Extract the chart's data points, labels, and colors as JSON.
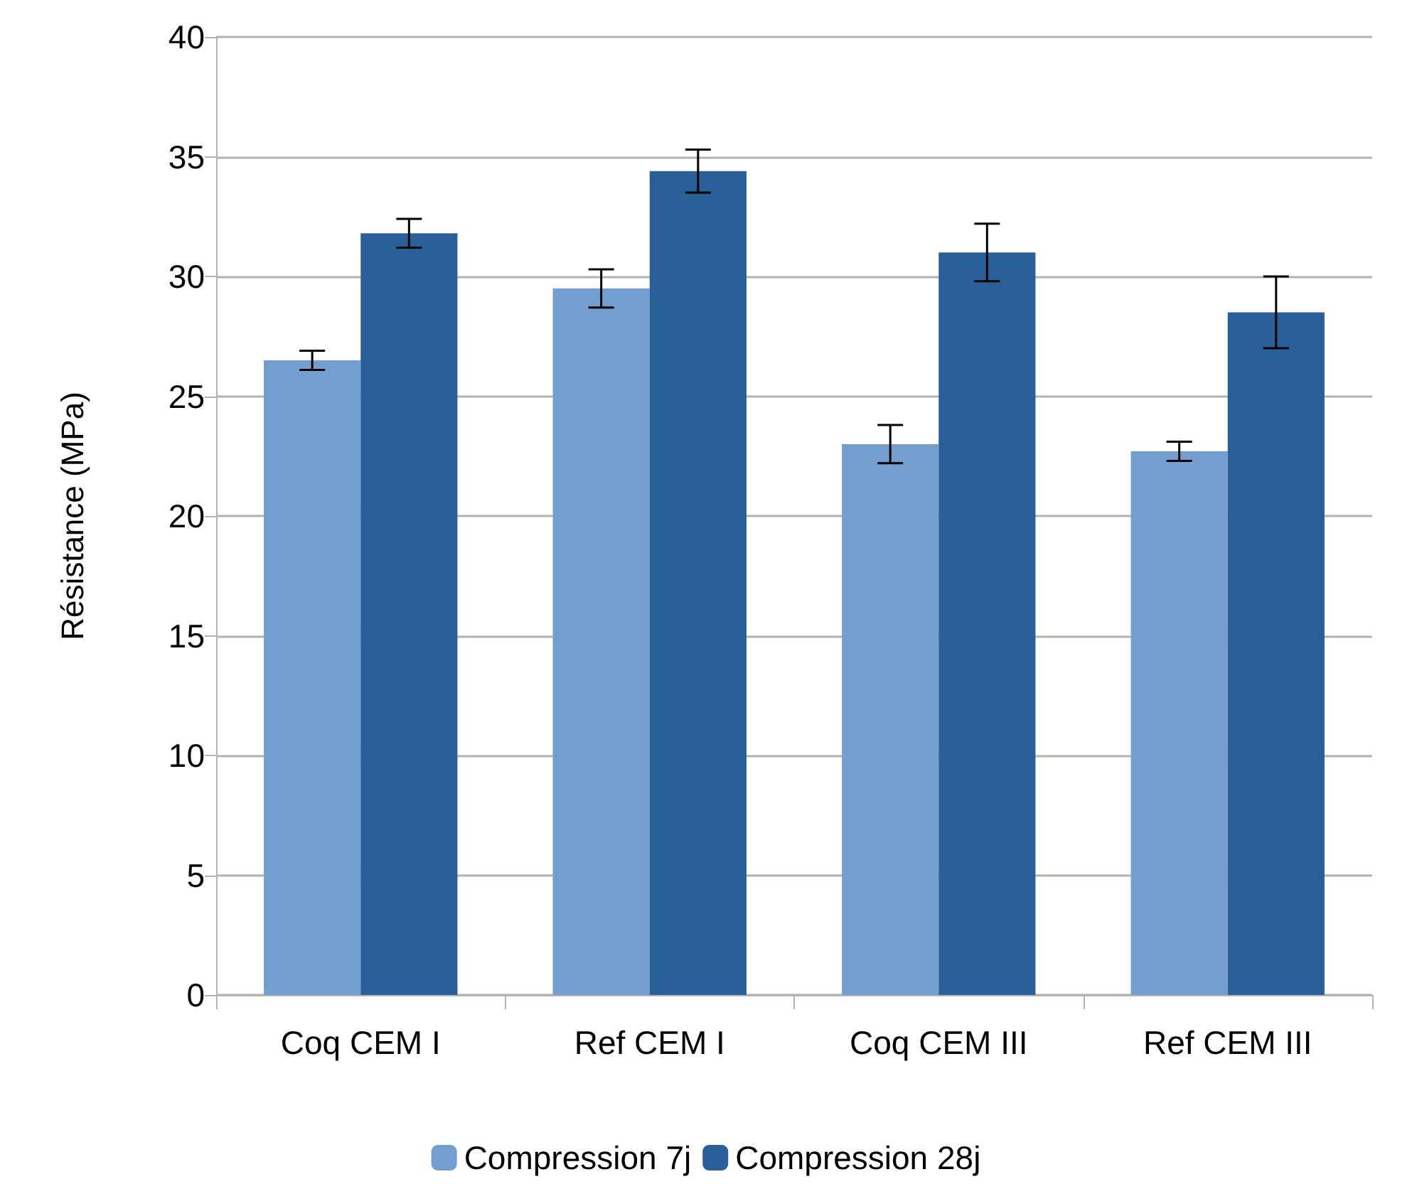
{
  "chart_data": {
    "type": "bar",
    "ylabel": "Résistance (MPa)",
    "categories": [
      "Coq CEM I",
      "Ref CEM I",
      "Coq CEM III",
      "Ref CEM III"
    ],
    "series": [
      {
        "name": "Compression 7j",
        "color": "#729fcf",
        "values": [
          26.5,
          29.5,
          23.0,
          22.7
        ],
        "errors": [
          0.4,
          0.8,
          0.8,
          0.4
        ]
      },
      {
        "name": "Compression 28j",
        "color": "#2a6099",
        "values": [
          31.8,
          34.4,
          31.0,
          28.5
        ],
        "errors": [
          0.6,
          0.9,
          1.2,
          1.5
        ]
      }
    ],
    "ylim": [
      0,
      40
    ],
    "yticks": [
      0,
      5,
      10,
      15,
      20,
      25,
      30,
      35,
      40
    ],
    "grid": "y",
    "legend": "bottom"
  }
}
